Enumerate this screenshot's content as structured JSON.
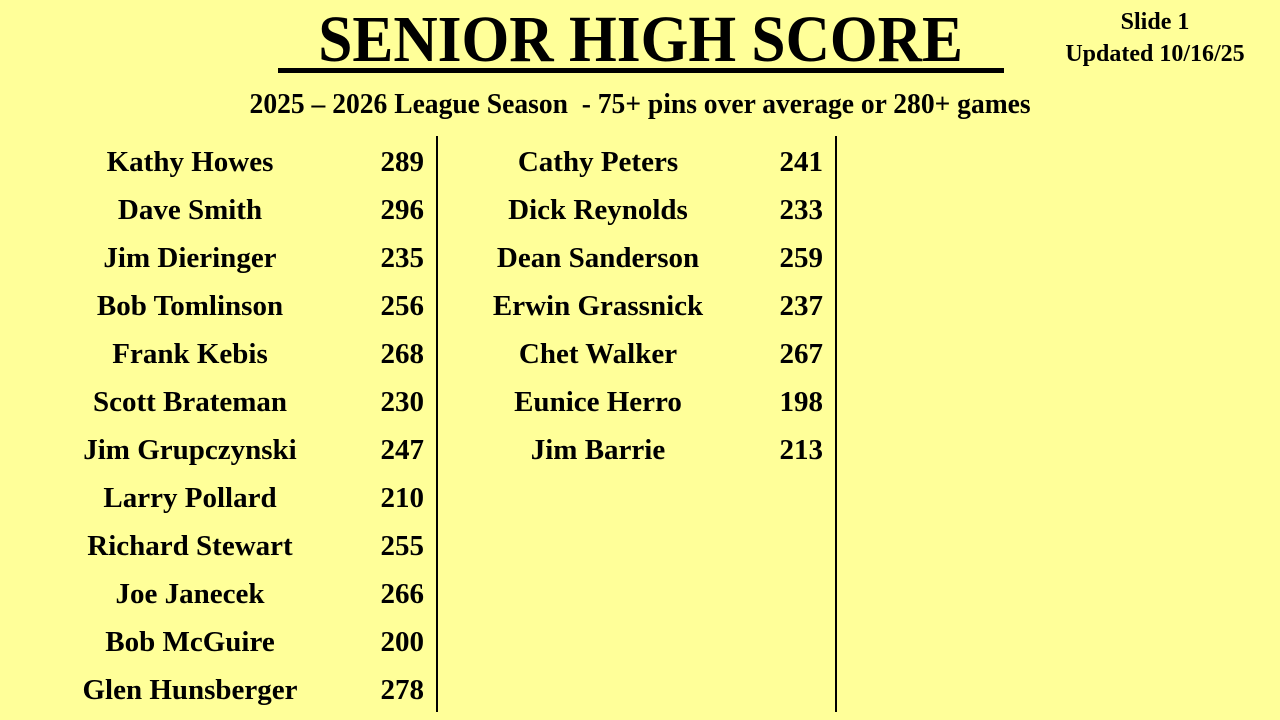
{
  "header": {
    "title": "SENIOR HIGH SCORE",
    "slide": "Slide 1",
    "updated": "Updated 10/16/25",
    "subtitle": "2025 – 2026 League Season  - 75+ pins over average or 280+ games"
  },
  "colors": {
    "background": "#FFFF99",
    "text": "#000000"
  },
  "columns": [
    [
      {
        "name": "Kathy Howes",
        "score": "289"
      },
      {
        "name": "Dave Smith",
        "score": "296"
      },
      {
        "name": "Jim Dieringer",
        "score": "235"
      },
      {
        "name": "Bob Tomlinson",
        "score": "256"
      },
      {
        "name": "Frank Kebis",
        "score": "268"
      },
      {
        "name": "Scott Brateman",
        "score": "230"
      },
      {
        "name": "Jim Grupczynski",
        "score": "247"
      },
      {
        "name": "Larry Pollard",
        "score": "210"
      },
      {
        "name": "Richard Stewart",
        "score": "255"
      },
      {
        "name": "Joe Janecek",
        "score": "266"
      },
      {
        "name": "Bob McGuire",
        "score": "200"
      },
      {
        "name": "Glen Hunsberger",
        "score": "278"
      }
    ],
    [
      {
        "name": "Cathy Peters",
        "score": "241"
      },
      {
        "name": "Dick Reynolds",
        "score": "233"
      },
      {
        "name": "Dean Sanderson",
        "score": "259"
      },
      {
        "name": "Erwin Grassnick",
        "score": "237"
      },
      {
        "name": "Chet Walker",
        "score": "267"
      },
      {
        "name": "Eunice Herro",
        "score": "198"
      },
      {
        "name": "Jim Barrie",
        "score": "213"
      }
    ]
  ]
}
